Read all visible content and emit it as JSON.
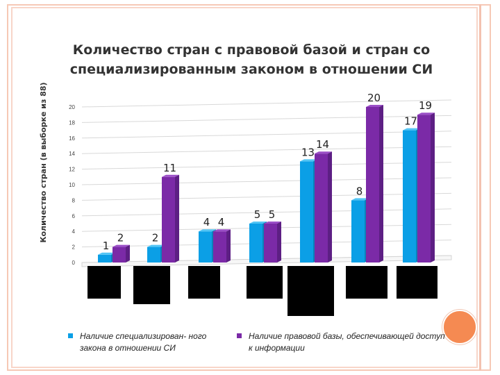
{
  "title": "Количество стран с правовой базой и стран со специализированным законом в отношении СИ",
  "colors": {
    "blue": "#0b9fe6",
    "purple": "#7b2aa7",
    "grid": "#d8d8d8",
    "black_box": "#000000"
  },
  "legend": {
    "blue_label": "Наличие специализирован- ного закона в отношении СИ",
    "purple_label": "Наличие правовой базы, обеспечивающей доступ к информации"
  },
  "chart_data": {
    "type": "bar",
    "categories": [
      "",
      "",
      "",
      "",
      "",
      "",
      ""
    ],
    "series": [
      {
        "name": "Наличие специализирован- ного закона в отношении СИ",
        "values": [
          1,
          2,
          4,
          5,
          13,
          8,
          17
        ]
      },
      {
        "name": "Наличие правовой базы, обеспечивающей доступ к информации",
        "values": [
          2,
          11,
          4,
          5,
          14,
          20,
          19
        ]
      }
    ],
    "title": "Количество стран с правовой базой и стран со специализированным законом в отношении СИ",
    "xlabel": "",
    "ylabel": "Количество стран (в выборке из 88)",
    "yticks": [
      "0",
      "2",
      "4",
      "6",
      "8",
      "10",
      "12",
      "14",
      "16",
      "18",
      "20"
    ],
    "ylim": [
      0,
      20
    ],
    "grid": true,
    "legend_position": "bottom"
  }
}
